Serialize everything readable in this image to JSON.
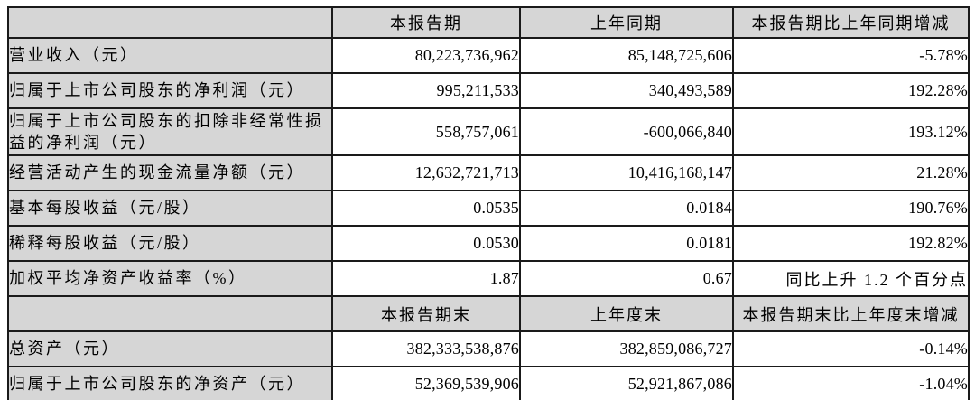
{
  "colors": {
    "header_bg": "#d6d6d6",
    "grid_border": "#1a1a1a",
    "cell_bg": "#ffffff",
    "text": "#000000"
  },
  "table": {
    "sections": [
      {
        "header": {
          "label": "",
          "current": "本报告期",
          "prior": "上年同期",
          "change": "本报告期比上年同期增减"
        },
        "rows": [
          {
            "label": "营业收入（元）",
            "current": "80,223,736,962",
            "prior": "85,148,725,606",
            "change": "-5.78%"
          },
          {
            "label": "归属于上市公司股东的净利润（元）",
            "current": "995,211,533",
            "prior": "340,493,589",
            "change": "192.28%"
          },
          {
            "label": "归属于上市公司股东的扣除非经常性损益的净利润（元）",
            "current": "558,757,061",
            "prior": "-600,066,840",
            "change": "193.12%"
          },
          {
            "label": "经营活动产生的现金流量净额（元）",
            "current": "12,632,721,713",
            "prior": "10,416,168,147",
            "change": "21.28%"
          },
          {
            "label": "基本每股收益（元/股）",
            "current": "0.0535",
            "prior": "0.0184",
            "change": "190.76%"
          },
          {
            "label": "稀释每股收益（元/股）",
            "current": "0.0530",
            "prior": "0.0181",
            "change": "192.82%"
          },
          {
            "label": "加权平均净资产收益率（%）",
            "current": "1.87",
            "prior": "0.67",
            "change": "同比上升 1.2 个百分点"
          }
        ]
      },
      {
        "header": {
          "label": "",
          "current": "本报告期末",
          "prior": "上年度末",
          "change": "本报告期末比上年度末增减"
        },
        "rows": [
          {
            "label": "总资产（元）",
            "current": "382,333,538,876",
            "prior": "382,859,086,727",
            "change": "-0.14%"
          },
          {
            "label": "归属于上市公司股东的净资产（元）",
            "current": "52,369,539,906",
            "prior": "52,921,867,086",
            "change": "-1.04%"
          }
        ]
      }
    ]
  }
}
